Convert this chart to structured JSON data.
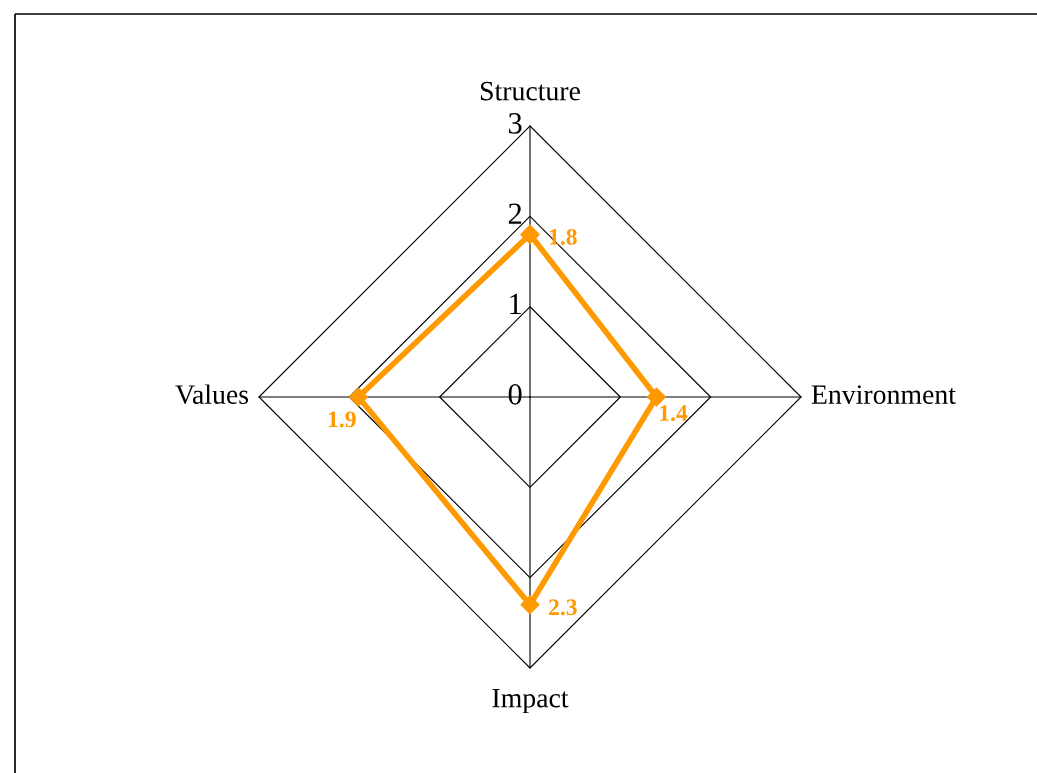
{
  "chart_data": {
    "type": "radar",
    "categories": [
      "Structure",
      "Environment",
      "Impact",
      "Values"
    ],
    "series": [
      {
        "color": "#ff9900",
        "values": [
          1.8,
          1.4,
          2.3,
          1.9
        ]
      }
    ],
    "ylim": [
      0,
      3
    ],
    "yticks": [
      0,
      1,
      2,
      3
    ],
    "marker": "diamond",
    "line_style": "solid",
    "data_labels": true,
    "grid": true,
    "legend": false
  }
}
